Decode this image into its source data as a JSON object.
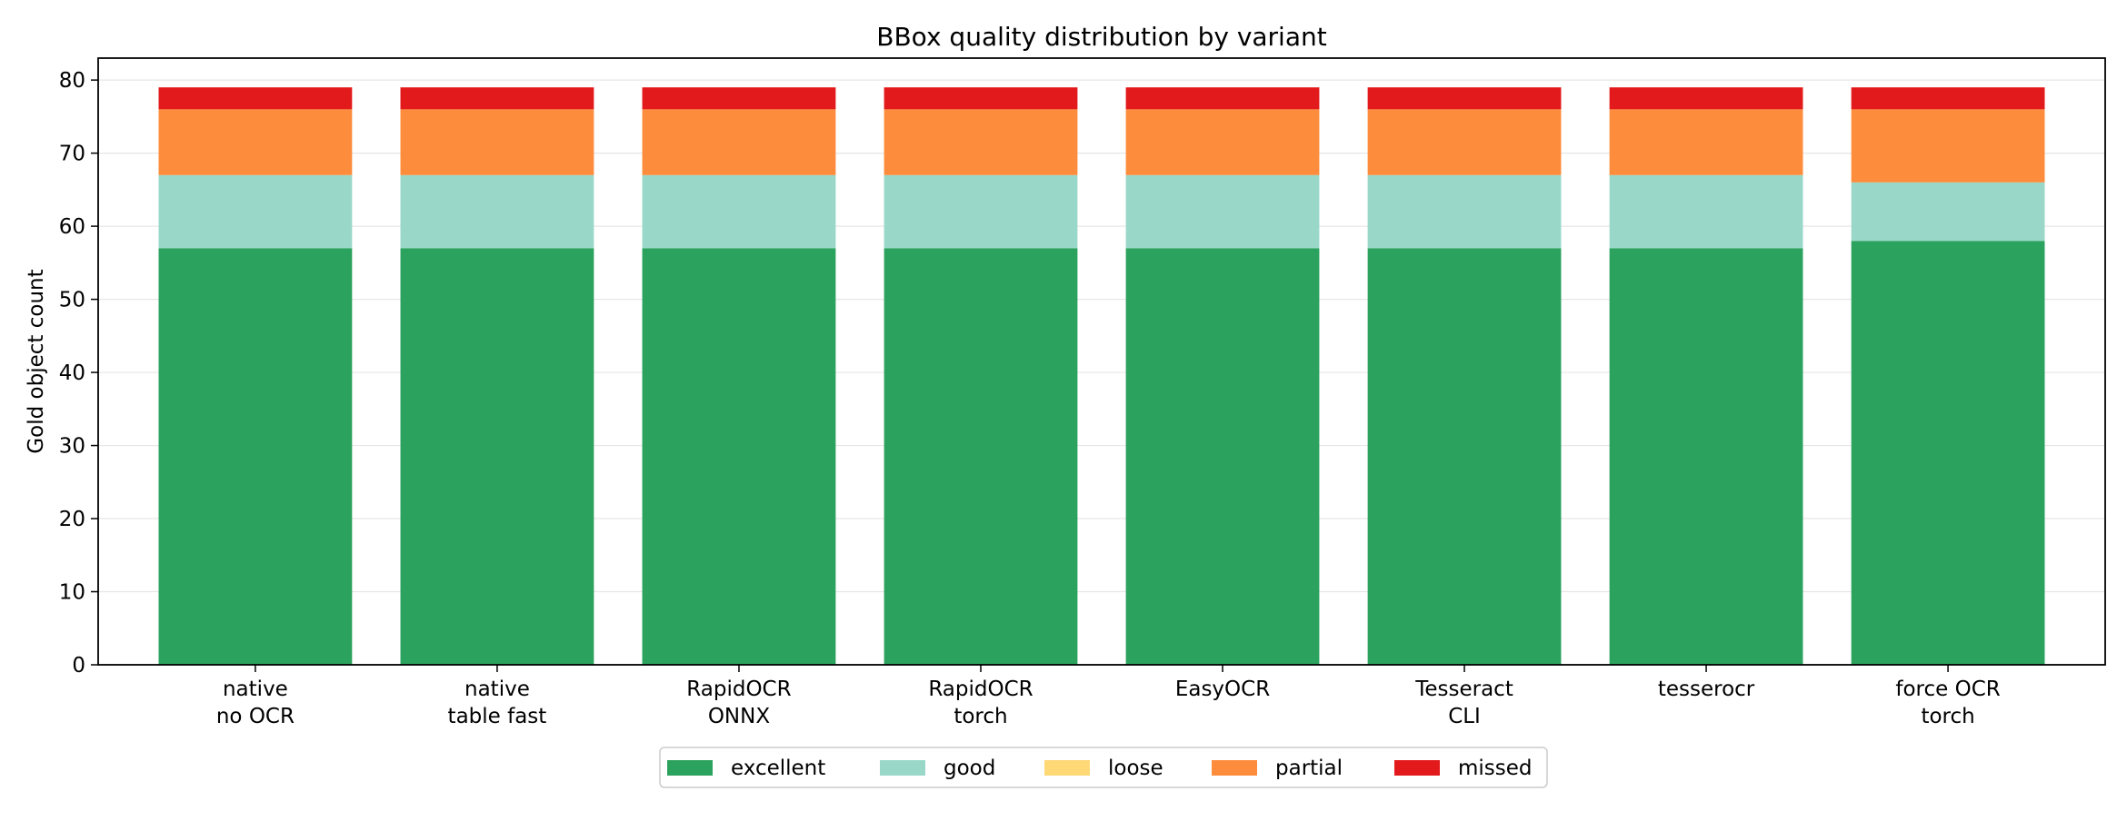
{
  "chart_data": {
    "type": "bar",
    "stacked": true,
    "title": "BBox quality distribution by variant",
    "xlabel": "",
    "ylabel": "Gold object count",
    "ylim": [
      0,
      83
    ],
    "yticks": [
      0,
      10,
      20,
      30,
      40,
      50,
      60,
      70,
      80
    ],
    "grid": "horizontal",
    "legend_position": "bottom-center",
    "categories": [
      [
        "native",
        "no OCR"
      ],
      [
        "native",
        "table fast"
      ],
      [
        "RapidOCR",
        "ONNX"
      ],
      [
        "RapidOCR",
        "torch"
      ],
      [
        "EasyOCR"
      ],
      [
        "Tesseract",
        "CLI"
      ],
      [
        "tesserocr"
      ],
      [
        "force OCR",
        "torch"
      ]
    ],
    "series": [
      {
        "name": "excellent",
        "color": "#2ca25f",
        "values": [
          57,
          57,
          57,
          57,
          57,
          57,
          57,
          58
        ]
      },
      {
        "name": "good",
        "color": "#99d8c9",
        "values": [
          10,
          10,
          10,
          10,
          10,
          10,
          10,
          8
        ]
      },
      {
        "name": "loose",
        "color": "#fed976",
        "values": [
          0,
          0,
          0,
          0,
          0,
          0,
          0,
          0
        ]
      },
      {
        "name": "partial",
        "color": "#fd8d3c",
        "values": [
          9,
          9,
          9,
          9,
          9,
          9,
          9,
          10
        ]
      },
      {
        "name": "missed",
        "color": "#e31a1c",
        "values": [
          3,
          3,
          3,
          3,
          3,
          3,
          3,
          3
        ]
      }
    ]
  }
}
